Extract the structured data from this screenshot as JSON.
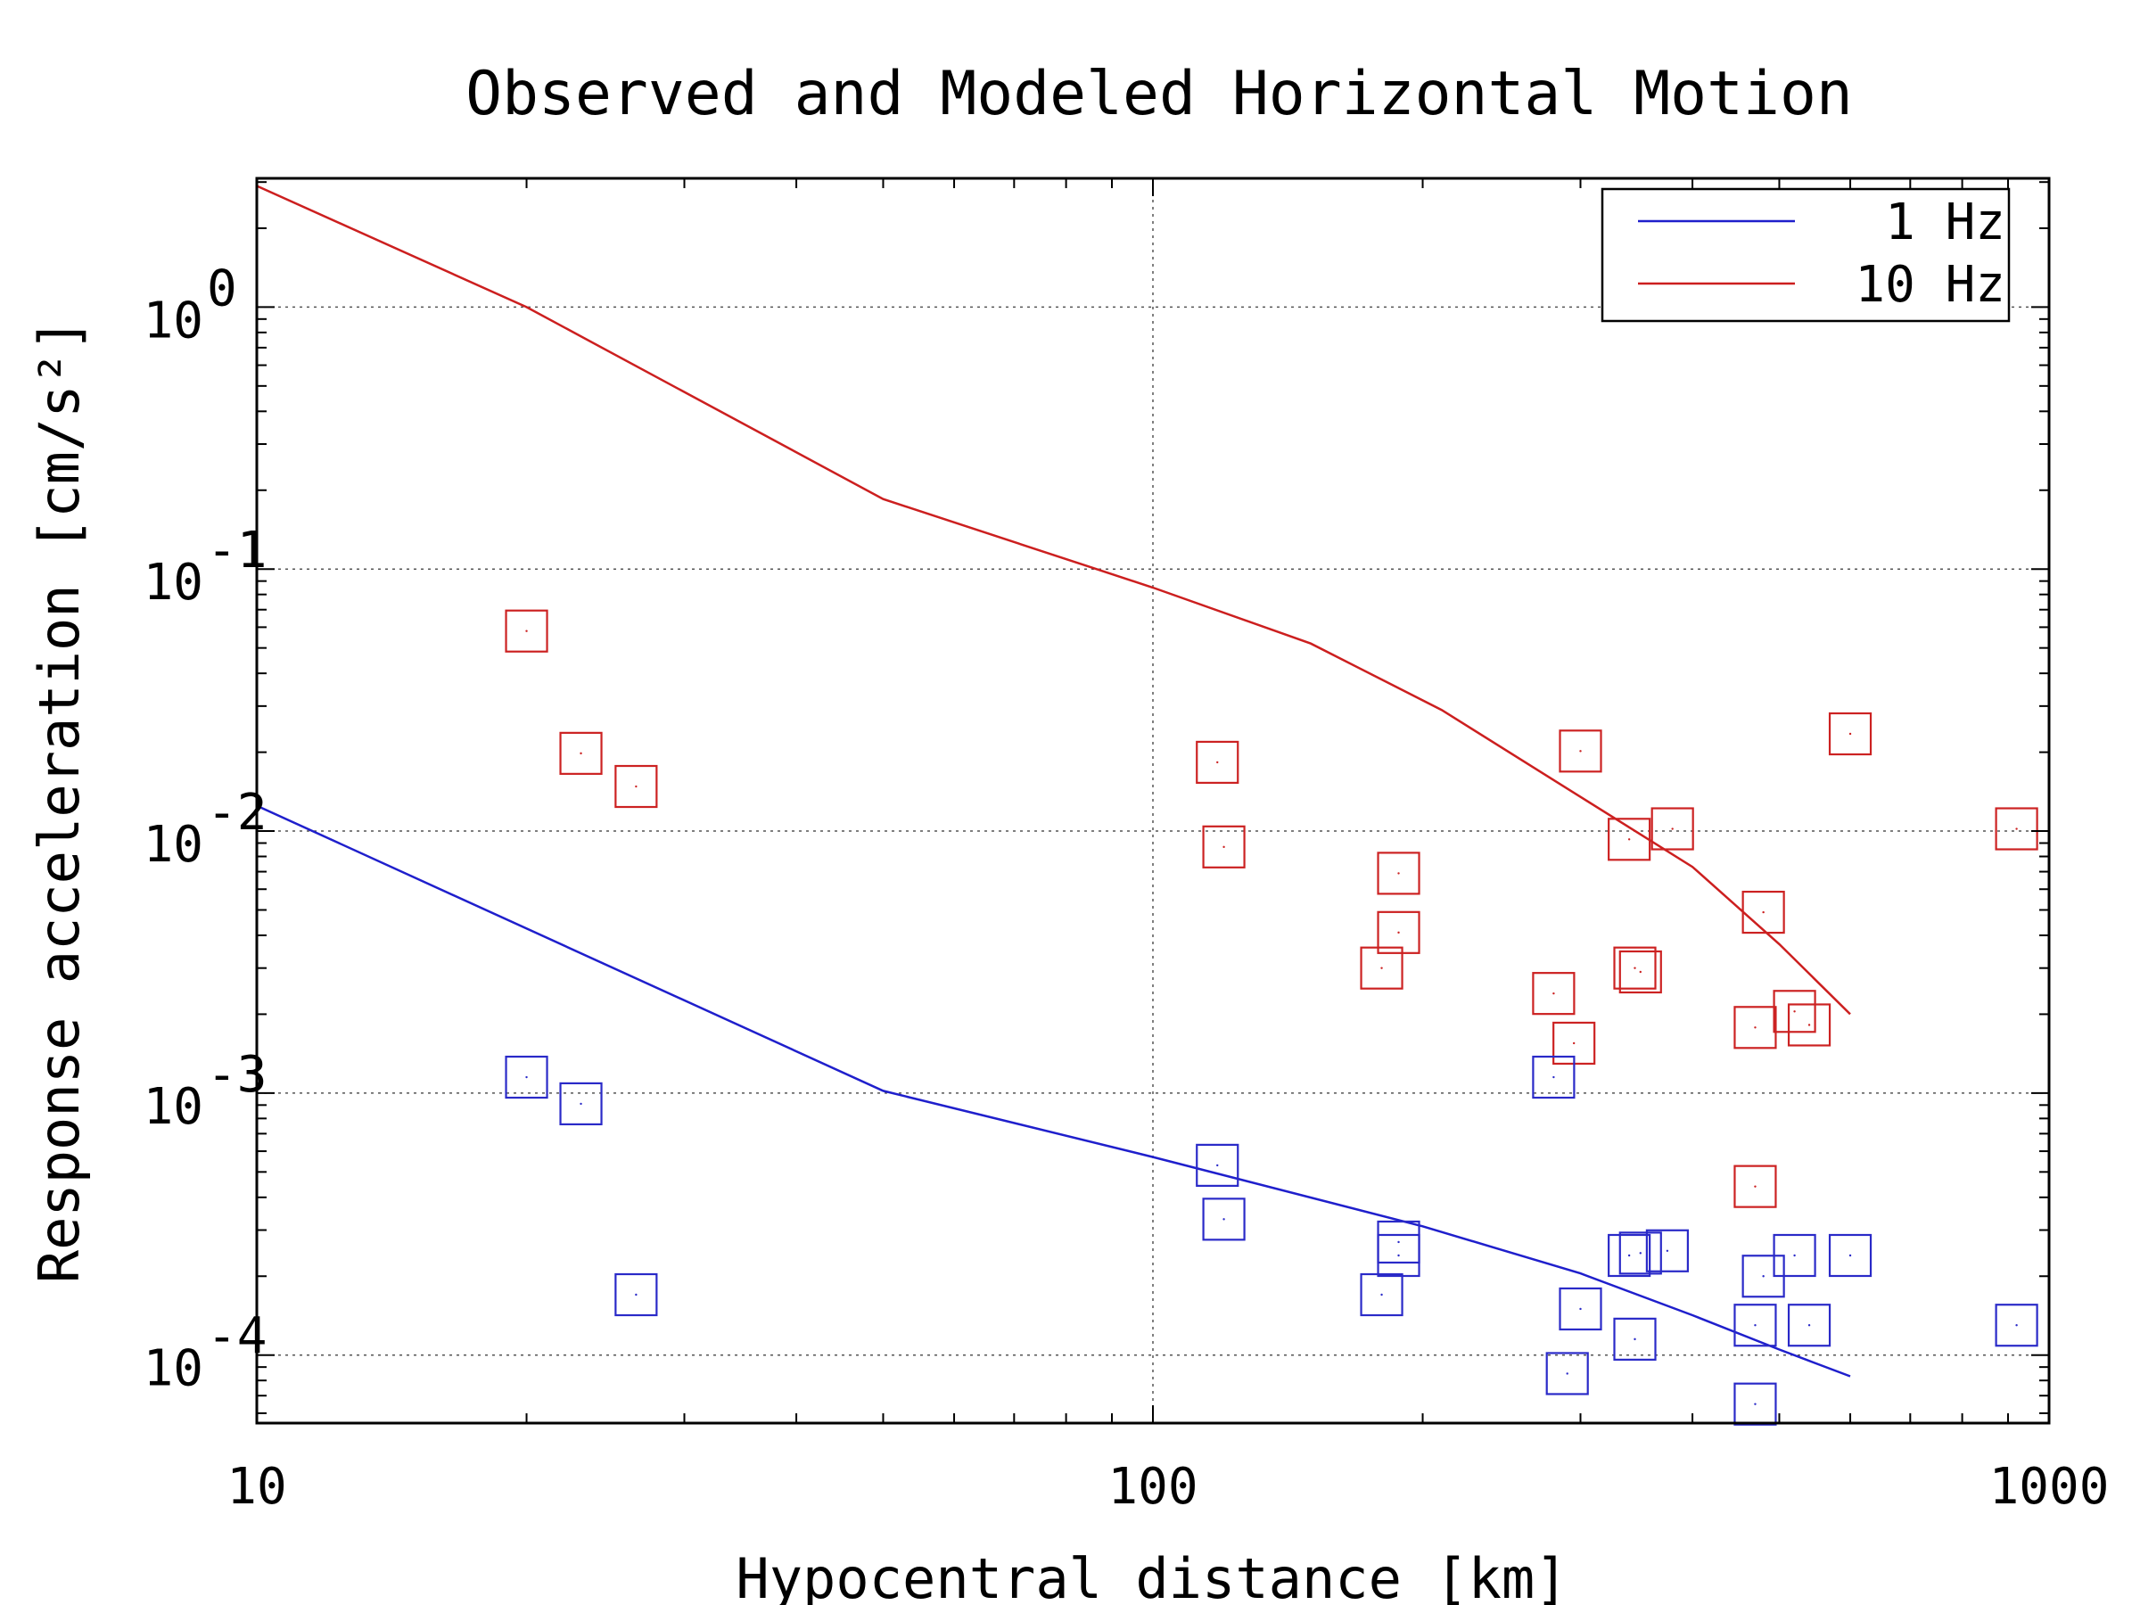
{
  "chart_data": {
    "type": "scatter",
    "title": "Observed and Modeled Horizontal Motion",
    "xlabel": "Hypocentral distance [km]",
    "ylabel": "Response acceleration [cm/s²]",
    "x_scale": "log",
    "y_scale": "log",
    "xlim": [
      10,
      1000
    ],
    "ylim": [
      5.5e-05,
      3.1
    ],
    "x_ticks": [
      {
        "value": 10,
        "label": "10"
      },
      {
        "value": 100,
        "label": "100"
      },
      {
        "value": 1000,
        "label": "1000"
      }
    ],
    "y_ticks": [
      {
        "value": 0.0001,
        "base": "10",
        "exp": "-4"
      },
      {
        "value": 0.001,
        "base": "10",
        "exp": "-3"
      },
      {
        "value": 0.01,
        "base": "10",
        "exp": "-2"
      },
      {
        "value": 0.1,
        "base": "10",
        "exp": "-1"
      },
      {
        "value": 1,
        "base": "10",
        "exp": "0"
      }
    ],
    "grid": "dotted, major ticks",
    "legend_position": "top-right",
    "series": [
      {
        "name": "1 Hz",
        "kind": "line",
        "color": "#1f1fcc",
        "points": [
          [
            10,
            0.0125
          ],
          [
            50,
            0.00102
          ],
          [
            100,
            0.00057
          ],
          [
            200,
            0.00031
          ],
          [
            300,
            0.000205
          ],
          [
            400,
            0.000142
          ],
          [
            500,
            0.000105
          ],
          [
            600,
            8.3e-05
          ]
        ]
      },
      {
        "name": "10 Hz",
        "kind": "line",
        "color": "#cc1f1f",
        "points": [
          [
            10,
            2.9
          ],
          [
            20,
            1.0
          ],
          [
            50,
            0.185
          ],
          [
            100,
            0.085
          ],
          [
            150,
            0.052
          ],
          [
            210,
            0.029
          ],
          [
            300,
            0.0135
          ],
          [
            400,
            0.0073
          ],
          [
            500,
            0.0037
          ],
          [
            600,
            0.002
          ]
        ]
      },
      {
        "name": "",
        "kind": "markers",
        "marker": "square",
        "color": "#cc2222",
        "points": [
          [
            20,
            0.058
          ],
          [
            23,
            0.0198
          ],
          [
            26.5,
            0.0148
          ],
          [
            118,
            0.0183
          ],
          [
            120,
            0.0087
          ],
          [
            180,
            0.003
          ],
          [
            188,
            0.0069
          ],
          [
            188,
            0.0041
          ],
          [
            280,
            0.0024
          ],
          [
            295,
            0.00155
          ],
          [
            300,
            0.0202
          ],
          [
            340,
            0.0093
          ],
          [
            345,
            0.003
          ],
          [
            350,
            0.0029
          ],
          [
            380,
            0.0102
          ],
          [
            470,
            0.00178
          ],
          [
            480,
            0.0049
          ],
          [
            520,
            0.00205
          ],
          [
            540,
            0.00182
          ],
          [
            600,
            0.0235
          ],
          [
            920,
            0.0102
          ],
          [
            470,
            0.00044
          ]
        ]
      },
      {
        "name": "",
        "kind": "markers",
        "marker": "square",
        "color": "#2a2ac8",
        "points": [
          [
            20,
            0.00115
          ],
          [
            23,
            0.00091
          ],
          [
            26.5,
            0.00017
          ],
          [
            118,
            0.00053
          ],
          [
            120,
            0.00033
          ],
          [
            180,
            0.00017
          ],
          [
            188,
            0.00027
          ],
          [
            188,
            0.00024
          ],
          [
            280,
            0.00115
          ],
          [
            300,
            0.00015
          ],
          [
            290,
            8.5e-05
          ],
          [
            340,
            0.00024
          ],
          [
            345,
            0.000115
          ],
          [
            350,
            0.000245
          ],
          [
            375,
            0.00025
          ],
          [
            470,
            0.00013
          ],
          [
            470,
            6.5e-05
          ],
          [
            480,
            0.0002
          ],
          [
            520,
            0.00024
          ],
          [
            540,
            0.00013
          ],
          [
            600,
            0.00024
          ],
          [
            920,
            0.00013
          ]
        ]
      }
    ]
  }
}
